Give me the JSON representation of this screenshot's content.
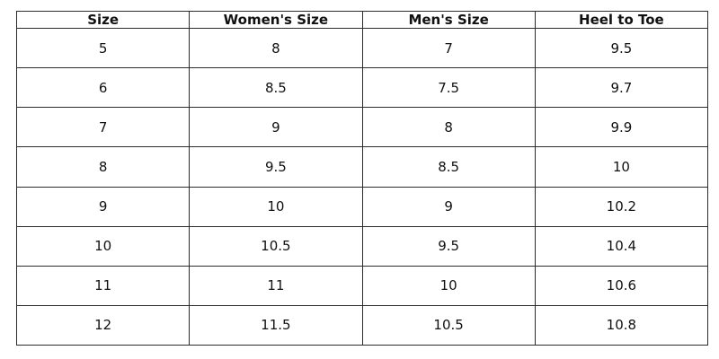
{
  "table": {
    "headers": [
      "Size",
      "Women's Size",
      "Men's Size",
      "Heel to Toe"
    ],
    "rows": [
      [
        "5",
        "8",
        "7",
        "9.5"
      ],
      [
        "6",
        "8.5",
        "7.5",
        "9.7"
      ],
      [
        "7",
        "9",
        "8",
        "9.9"
      ],
      [
        "8",
        "9.5",
        "8.5",
        "10"
      ],
      [
        "9",
        "10",
        "9",
        "10.2"
      ],
      [
        "10",
        "10.5",
        "9.5",
        "10.4"
      ],
      [
        "11",
        "11",
        "10",
        "10.6"
      ],
      [
        "12",
        "11.5",
        "10.5",
        "10.8"
      ]
    ]
  }
}
